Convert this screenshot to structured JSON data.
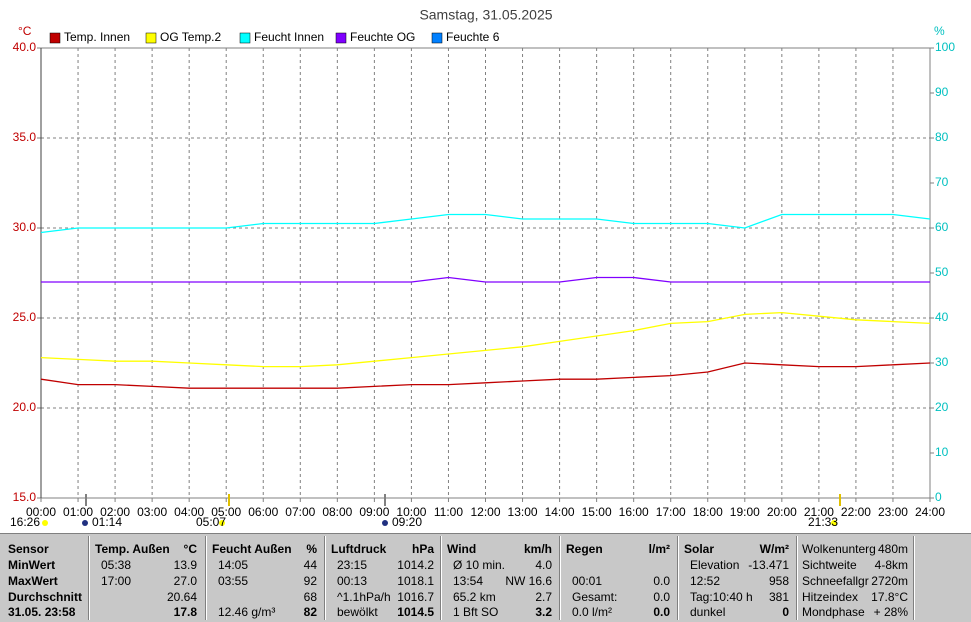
{
  "chart_data": {
    "type": "line",
    "title": "Samstag, 31.05.2025",
    "y_unit": "°C",
    "y2_unit": "%",
    "x": [
      0,
      1,
      2,
      3,
      4,
      5,
      6,
      7,
      8,
      9,
      10,
      11,
      12,
      13,
      14,
      15,
      16,
      17,
      18,
      19,
      20,
      21,
      22,
      23,
      24
    ],
    "xlim": [
      0,
      24
    ],
    "xticks": [
      {
        "value": 0,
        "label": "00:00"
      },
      {
        "value": 1,
        "label": "01:00"
      },
      {
        "value": 2,
        "label": "02:00"
      },
      {
        "value": 3,
        "label": "03:00"
      },
      {
        "value": 4,
        "label": "04:00"
      },
      {
        "value": 5,
        "label": "05:00"
      },
      {
        "value": 6,
        "label": "06:00"
      },
      {
        "value": 7,
        "label": "07:00"
      },
      {
        "value": 8,
        "label": "08:00"
      },
      {
        "value": 9,
        "label": "09:00"
      },
      {
        "value": 10,
        "label": "10:00"
      },
      {
        "value": 11,
        "label": "11:00"
      },
      {
        "value": 12,
        "label": "12:00"
      },
      {
        "value": 13,
        "label": "13:00"
      },
      {
        "value": 14,
        "label": "14:00"
      },
      {
        "value": 15,
        "label": "15:00"
      },
      {
        "value": 16,
        "label": "16:00"
      },
      {
        "value": 17,
        "label": "17:00"
      },
      {
        "value": 18,
        "label": "18:00"
      },
      {
        "value": 19,
        "label": "19:00"
      },
      {
        "value": 20,
        "label": "20:00"
      },
      {
        "value": 21,
        "label": "21:00"
      },
      {
        "value": 22,
        "label": "22:00"
      },
      {
        "value": 23,
        "label": "23:00"
      },
      {
        "value": 24,
        "label": "24:00"
      }
    ],
    "ylim": [
      15,
      40
    ],
    "yticks": [
      {
        "value": 15,
        "label": "15.0"
      },
      {
        "value": 20,
        "label": "20.0"
      },
      {
        "value": 25,
        "label": "25.0"
      },
      {
        "value": 30,
        "label": "30.0"
      },
      {
        "value": 35,
        "label": "35.0"
      },
      {
        "value": 40,
        "label": "40.0"
      }
    ],
    "y2lim": [
      0,
      100
    ],
    "y2ticks": [
      0,
      10,
      20,
      30,
      40,
      50,
      60,
      70,
      80,
      90,
      100
    ],
    "grid": true,
    "series": [
      {
        "name": "Temp. Innen",
        "color": "#c00000",
        "values": [
          21.6,
          21.3,
          21.3,
          21.2,
          21.1,
          21.1,
          21.1,
          21.1,
          21.1,
          21.2,
          21.3,
          21.3,
          21.4,
          21.5,
          21.6,
          21.6,
          21.7,
          21.8,
          22.0,
          22.5,
          22.4,
          22.3,
          22.3,
          22.4,
          22.5
        ]
      },
      {
        "name": "OG Temp.2",
        "color": "#ffff00",
        "values": [
          22.8,
          22.7,
          22.6,
          22.6,
          22.5,
          22.4,
          22.3,
          22.3,
          22.4,
          22.6,
          22.8,
          23.0,
          23.2,
          23.4,
          23.7,
          24.0,
          24.3,
          24.7,
          24.8,
          25.2,
          25.3,
          25.1,
          24.9,
          24.8,
          24.7
        ]
      },
      {
        "name": "Feucht Innen",
        "color": "#00ffff",
        "axis": "y2",
        "values": [
          59,
          60,
          60,
          60,
          60,
          60,
          61,
          61,
          61,
          61,
          62,
          63,
          63,
          62,
          62,
          62,
          61,
          61,
          61,
          60,
          63,
          63,
          63,
          63,
          62
        ]
      },
      {
        "name": "Feuchte OG",
        "color": "#8000ff",
        "axis": "y2",
        "values": [
          48,
          48,
          48,
          48,
          48,
          48,
          48,
          48,
          48,
          48,
          48,
          49,
          48,
          48,
          48,
          49,
          49,
          48,
          48,
          48,
          48,
          48,
          48,
          48,
          48
        ]
      },
      {
        "name": "Feuchte 6",
        "color": "#0080ff",
        "axis": "y2",
        "values": [
          null,
          null,
          null,
          null,
          null,
          null,
          null,
          null,
          null,
          null,
          null,
          null,
          null,
          null,
          null,
          null,
          null,
          null,
          null,
          null,
          null,
          null,
          null,
          null,
          null
        ]
      }
    ],
    "annotations": [
      "16:26",
      "01:14",
      "05:07",
      "09:20",
      "21:33"
    ]
  },
  "table": {
    "row_labels": [
      "Sensor",
      "MinWert",
      "MaxWert",
      "Durchschnitt",
      "31.05. 23:58"
    ],
    "columns": [
      {
        "title": "Temp. Außen",
        "unit": "°C",
        "cells": [
          [
            "05:38",
            "13.9"
          ],
          [
            "17:00",
            "27.0"
          ],
          [
            null,
            "20.64"
          ],
          [
            null,
            "17.8"
          ]
        ]
      },
      {
        "title": "Feucht Außen",
        "unit": "%",
        "cells": [
          [
            "14:05",
            "44"
          ],
          [
            "03:55",
            "92"
          ],
          [
            null,
            "68"
          ],
          [
            "12.46 g/m³",
            "82"
          ]
        ]
      },
      {
        "title": "Luftdruck",
        "unit": "hPa",
        "cells": [
          [
            "23:15",
            "1014.2"
          ],
          [
            "00:13",
            "1018.1"
          ],
          [
            "^1.1hPa/h",
            "1016.7"
          ],
          [
            "bewölkt",
            "1014.5"
          ]
        ]
      },
      {
        "title": "Wind",
        "unit": "km/h",
        "cells": [
          [
            "Ø 10 min.",
            "4.0"
          ],
          [
            "13:54",
            "NW 16.6"
          ],
          [
            "65.2 km",
            "2.7"
          ],
          [
            "1 Bft SO",
            "3.2"
          ]
        ]
      },
      {
        "title": "Regen",
        "unit": "l/m²",
        "cells": [
          [
            null,
            null
          ],
          [
            "00:01",
            "0.0"
          ],
          [
            "Gesamt:",
            "0.0"
          ],
          [
            "0.0 l/m²",
            "0.0"
          ]
        ]
      },
      {
        "title": "Solar",
        "unit": "W/m²",
        "cells": [
          [
            "Elevation",
            "-13.471"
          ],
          [
            "12:52",
            "958"
          ],
          [
            "Tag:10:40 h",
            "381"
          ],
          [
            "dunkel",
            "0"
          ]
        ]
      }
    ],
    "extra": [
      [
        "Wolkenunterg",
        "480m"
      ],
      [
        "Sichtweite",
        "4-8km"
      ],
      [
        "Schneefallgr",
        "2720m"
      ],
      [
        "Hitzeindex",
        "17.8°C"
      ],
      [
        "Mondphase",
        "+ 28%"
      ]
    ]
  }
}
